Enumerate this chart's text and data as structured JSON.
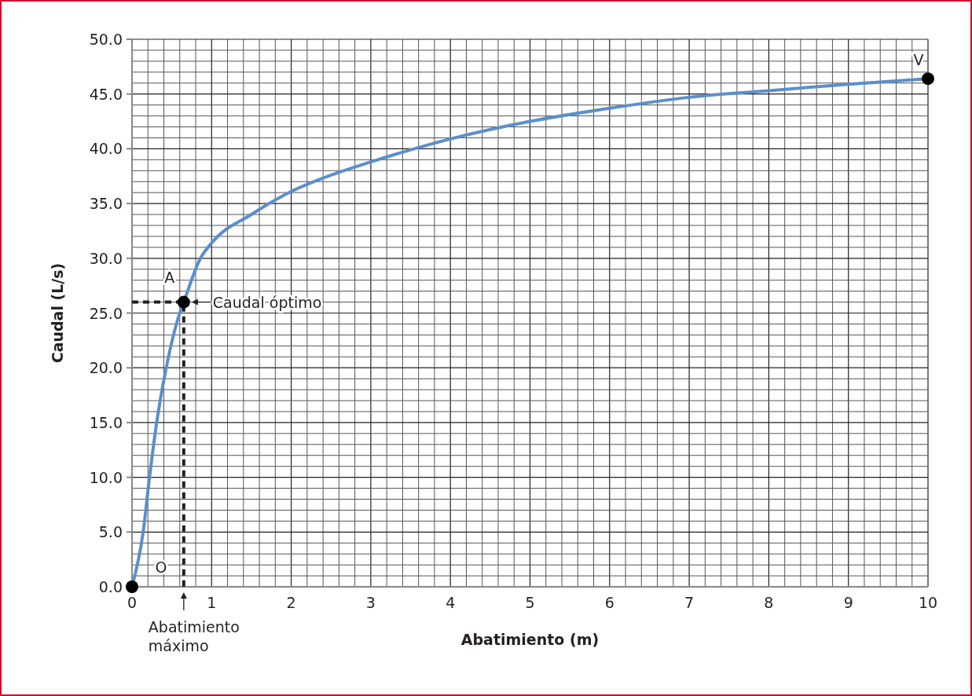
{
  "chart_data": {
    "type": "line",
    "xlabel": "Abatimiento (m)",
    "ylabel": "Caudal (L/s)",
    "xlim": [
      0,
      10
    ],
    "ylim": [
      0,
      50
    ],
    "xticks": [
      0,
      1,
      2,
      3,
      4,
      5,
      6,
      7,
      8,
      9,
      10
    ],
    "yticks": [
      {
        "value": 0,
        "label": "0.0"
      },
      {
        "value": 5,
        "label": "5.0"
      },
      {
        "value": 10,
        "label": "10.0"
      },
      {
        "value": 15,
        "label": "15.0"
      },
      {
        "value": 20,
        "label": "20.0"
      },
      {
        "value": 25,
        "label": "25.0"
      },
      {
        "value": 30,
        "label": "30.0"
      },
      {
        "value": 35,
        "label": "35.0"
      },
      {
        "value": 40,
        "label": "40.0"
      },
      {
        "value": 45,
        "label": "45.0"
      },
      {
        "value": 50,
        "label": "50.0"
      }
    ],
    "grid": true,
    "series": [
      {
        "color": "#5b8fc9",
        "x": [
          0,
          0.14,
          0.22,
          0.31,
          0.43,
          0.6,
          0.65,
          0.86,
          1,
          1.5,
          2,
          2.5,
          3,
          4,
          5,
          6,
          7,
          8,
          9,
          10
        ],
        "values": [
          0,
          5,
          10,
          15,
          20,
          25,
          26,
          30,
          31.4,
          34,
          36.1,
          37.6,
          38.8,
          40.9,
          42.5,
          43.7,
          44.7,
          45.3,
          45.9,
          46.4
        ]
      },
      {
        "type": "line",
        "line_style": "dashed",
        "color": "#231f20",
        "x": [
          0,
          0.65,
          0.65
        ],
        "values": [
          26,
          26,
          0
        ]
      },
      {
        "type": "scatter",
        "marker": "circle",
        "color": "#000000",
        "x": [
          0,
          0.65,
          10
        ],
        "values": [
          0,
          26,
          46.4
        ]
      }
    ],
    "annotations": [
      {
        "text": "O",
        "x": 0,
        "y": 0
      },
      {
        "text": "A",
        "x": 0.65,
        "y": 26
      },
      {
        "text": "V",
        "x": 10,
        "y": 46.4
      },
      {
        "text": "Caudal óptimo",
        "x": 0.65,
        "y": 26
      },
      {
        "text": "Abatimiento máximo",
        "x": 0.65,
        "y": 0
      }
    ]
  }
}
